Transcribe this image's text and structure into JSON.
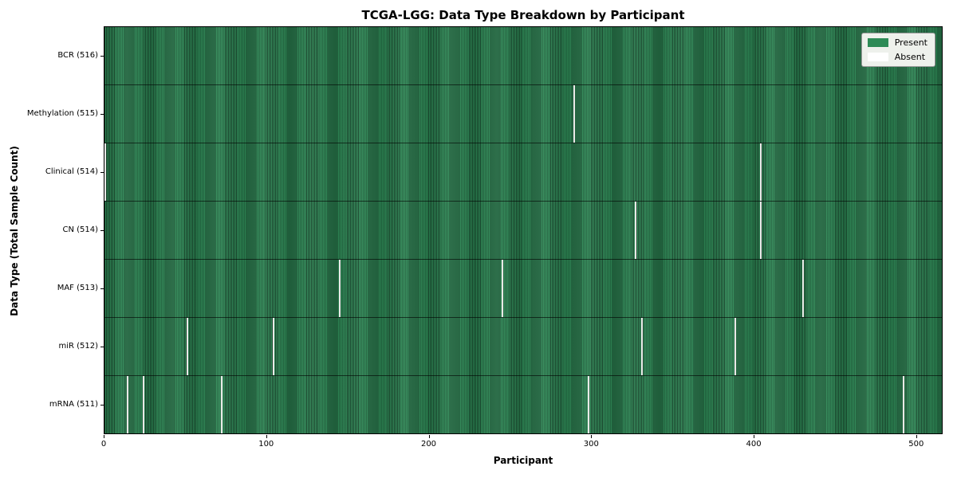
{
  "title": "TCGA-LGG: Data Type Breakdown by Participant",
  "xlabel": "Participant",
  "ylabel": "Data Type (Total Sample Count)",
  "legend": {
    "present_label": "Present",
    "absent_label": "Absent"
  },
  "colors": {
    "present": "#2e8b57",
    "present_edge_dark": "#1c5636",
    "absent": "#ffffff",
    "row_divider": "#1a1a1a",
    "legend_background": "#eef1ec"
  },
  "chart_data": {
    "type": "heatmap",
    "title": "TCGA-LGG: Data Type Breakdown by Participant",
    "xlabel": "Participant",
    "ylabel": "Data Type (Total Sample Count)",
    "total_participants": 516,
    "x_ticks": [
      0,
      100,
      200,
      300,
      400,
      500
    ],
    "x_range": [
      0,
      516
    ],
    "grid": false,
    "legend_position": "upper right",
    "legend": [
      {
        "label": "Present",
        "color": "#2e8b57"
      },
      {
        "label": "Absent",
        "color": "#ffffff"
      }
    ],
    "rows": [
      {
        "label": "BCR (516)",
        "data_type": "BCR",
        "present_count": 516,
        "absent_count": 0,
        "absent_participants": []
      },
      {
        "label": "Methylation (515)",
        "data_type": "Methylation",
        "present_count": 515,
        "absent_count": 1,
        "absent_participants": [
          289
        ]
      },
      {
        "label": "Clinical (514)",
        "data_type": "Clinical",
        "present_count": 514,
        "absent_count": 2,
        "absent_participants": [
          0,
          404
        ]
      },
      {
        "label": "CN (514)",
        "data_type": "CN",
        "present_count": 514,
        "absent_count": 2,
        "absent_participants": [
          327,
          404
        ]
      },
      {
        "label": "MAF (513)",
        "data_type": "MAF",
        "present_count": 513,
        "absent_count": 3,
        "absent_participants": [
          145,
          245,
          430
        ]
      },
      {
        "label": "miR (512)",
        "data_type": "miR",
        "present_count": 512,
        "absent_count": 4,
        "absent_participants": [
          51,
          104,
          331,
          388
        ]
      },
      {
        "label": "mRNA (511)",
        "data_type": "mRNA",
        "present_count": 511,
        "absent_count": 5,
        "absent_participants": [
          14,
          24,
          72,
          298,
          492
        ]
      }
    ]
  }
}
